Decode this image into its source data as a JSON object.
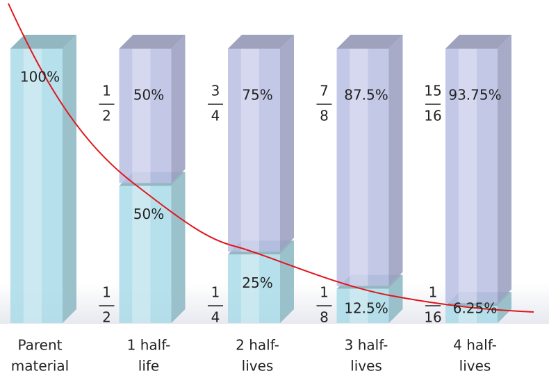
{
  "chart_data": {
    "type": "stacked-bar-3d",
    "categories": [
      [
        "Parent",
        "material"
      ],
      [
        "1 half-",
        "life"
      ],
      [
        "2 half-",
        "lives"
      ],
      [
        "3 half-",
        "lives"
      ],
      [
        "4 half-",
        "lives"
      ]
    ],
    "series": [
      {
        "name": "parent",
        "color": "#a9dbe8",
        "values": [
          100,
          50,
          25,
          12.5,
          6.25
        ],
        "value_labels": [
          "100%",
          "50%",
          "25%",
          "12.5%",
          "6.25%"
        ]
      },
      {
        "name": "daughter",
        "color": "#b9bee3",
        "values": [
          null,
          50,
          75,
          87.5,
          93.75
        ],
        "value_labels": [
          null,
          "50%",
          "75%",
          "87.5%",
          "93.75%"
        ]
      }
    ],
    "parent_fractions": [
      null,
      [
        "1",
        "2"
      ],
      [
        "1",
        "4"
      ],
      [
        "1",
        "8"
      ],
      [
        "1",
        "16"
      ]
    ],
    "daughter_fractions": [
      null,
      [
        "1",
        "2"
      ],
      [
        "3",
        "4"
      ],
      [
        "7",
        "8"
      ],
      [
        "15",
        "16"
      ]
    ],
    "curve_color": "#e0161b"
  }
}
